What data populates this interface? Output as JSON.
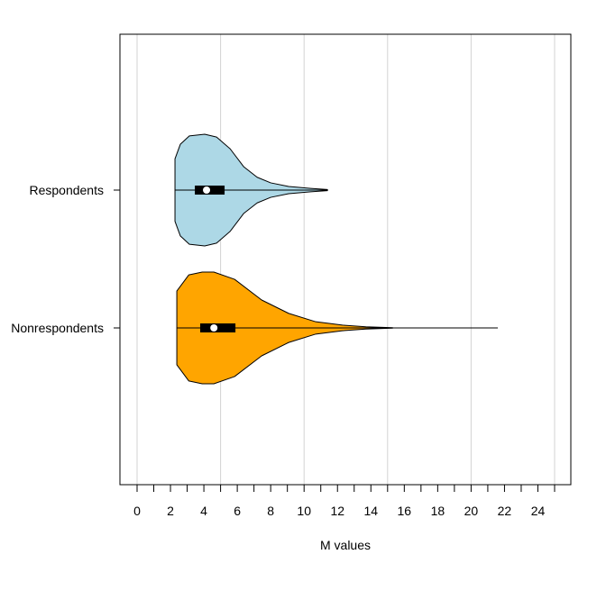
{
  "chart_data": {
    "type": "violin",
    "title": "",
    "xlabel": "M values",
    "ylabel": "",
    "xlim": [
      -1,
      26
    ],
    "x_ticks": [
      0,
      1,
      2,
      3,
      4,
      5,
      6,
      7,
      8,
      9,
      10,
      11,
      12,
      13,
      14,
      15,
      16,
      17,
      18,
      19,
      20,
      21,
      22,
      23,
      24,
      25
    ],
    "x_tick_labels": [
      "0",
      "2",
      "4",
      "6",
      "8",
      "10",
      "12",
      "14",
      "16",
      "18",
      "20",
      "22",
      "24"
    ],
    "x_tick_label_values": [
      0,
      2,
      4,
      6,
      8,
      10,
      12,
      14,
      16,
      18,
      20,
      22,
      24
    ],
    "grid": {
      "vertical": true,
      "at": [
        0,
        5,
        10,
        15,
        20,
        25
      ],
      "color": "#d3d3d3"
    },
    "orientation": "horizontal",
    "series": [
      {
        "name": "Respondents",
        "color": "#add8e6",
        "min": 2.27,
        "q1": 3.46,
        "median": 4.16,
        "q3": 5.24,
        "whisker_high": 7.78,
        "line_end": 11.4,
        "max": 11.4,
        "density": [
          [
            2.27,
            0.56
          ],
          [
            2.59,
            0.82
          ],
          [
            3.13,
            0.97
          ],
          [
            4.05,
            1.0
          ],
          [
            4.76,
            0.95
          ],
          [
            5.57,
            0.74
          ],
          [
            6.38,
            0.42
          ],
          [
            7.19,
            0.23
          ],
          [
            8.0,
            0.13
          ],
          [
            9.08,
            0.065
          ],
          [
            10.4,
            0.03
          ],
          [
            11.4,
            0.01
          ]
        ]
      },
      {
        "name": "Nonrespondents",
        "color": "#ffa500",
        "min": 2.38,
        "q1": 3.78,
        "median": 4.6,
        "q3": 5.89,
        "whisker_high": 8.97,
        "line_end": 21.6,
        "max": 15.3,
        "density": [
          [
            2.38,
            0.66
          ],
          [
            3.1,
            0.95
          ],
          [
            3.9,
            1.0
          ],
          [
            4.6,
            1.0
          ],
          [
            5.84,
            0.87
          ],
          [
            7.46,
            0.5
          ],
          [
            9.08,
            0.26
          ],
          [
            10.7,
            0.11
          ],
          [
            12.3,
            0.05
          ],
          [
            13.7,
            0.02
          ],
          [
            15.3,
            0.005
          ]
        ]
      }
    ]
  }
}
